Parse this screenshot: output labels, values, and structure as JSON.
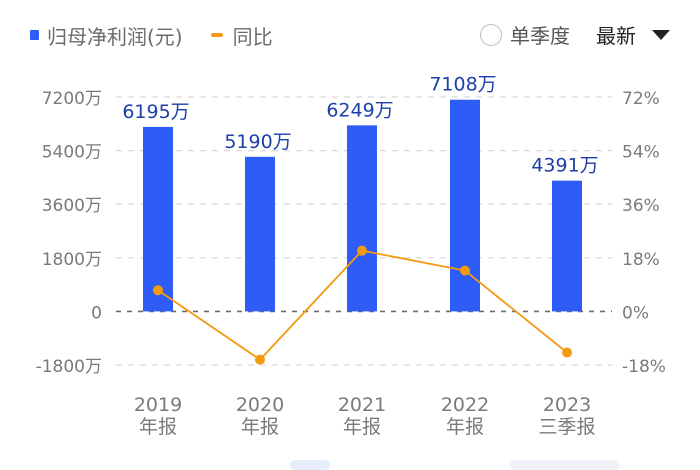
{
  "legend": {
    "bar_label": "归母净利润(元)",
    "line_label": "同比"
  },
  "controls": {
    "radio_label": "单季度",
    "dropdown_label": "最新"
  },
  "colors": {
    "bar": "#2d5cf6",
    "bar_label": "#1f3fa8",
    "line": "#f39a12",
    "axis_text": "#7a7a7a",
    "grid": "#d8d8d8",
    "zero_line": "#6e6e6e"
  },
  "chart_data": {
    "type": "bar+line",
    "title": "",
    "categories": [
      "2019\n年报",
      "2020\n年报",
      "2021\n年报",
      "2022\n年报",
      "2023\n三季报"
    ],
    "category_lines": [
      [
        "2019",
        "年报"
      ],
      [
        "2020",
        "年报"
      ],
      [
        "2021",
        "年报"
      ],
      [
        "2022",
        "年报"
      ],
      [
        "2023",
        "三季报"
      ]
    ],
    "series": [
      {
        "name": "归母净利润(元)",
        "type": "bar",
        "axis": "left",
        "unit": "万",
        "values": [
          6195,
          5190,
          6249,
          7108,
          4391
        ],
        "labels": [
          "6195万",
          "5190万",
          "6249万",
          "7108万",
          "4391万"
        ]
      },
      {
        "name": "同比",
        "type": "line",
        "axis": "right",
        "unit": "%",
        "values": [
          7.1,
          -16.2,
          20.4,
          13.7,
          -13.8
        ]
      }
    ],
    "y_left": {
      "ticks": [
        7200,
        5400,
        3600,
        1800,
        0,
        -1800
      ],
      "tick_labels": [
        "7200万",
        "5400万",
        "3600万",
        "1800万",
        "0",
        "-1800万"
      ],
      "range": [
        -1800,
        7200
      ]
    },
    "y_right": {
      "ticks": [
        72,
        54,
        36,
        18,
        0,
        -18
      ],
      "tick_labels": [
        "72%",
        "54%",
        "36%",
        "18%",
        "0%",
        "-18%"
      ],
      "range": [
        -18,
        72
      ]
    },
    "grid": true,
    "legend_position": "top-left"
  }
}
